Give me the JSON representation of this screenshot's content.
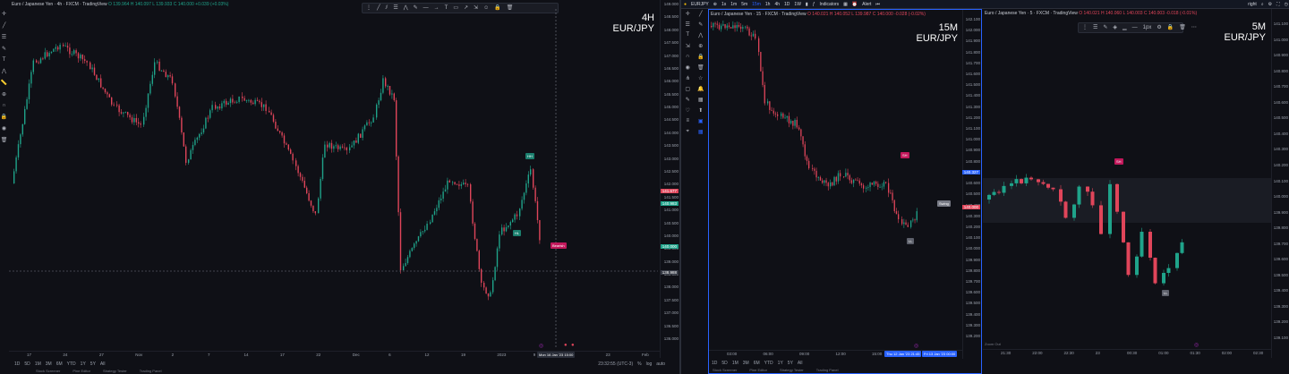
{
  "colors": {
    "background": "#0f1016",
    "up": "#1fa38a",
    "down": "#e0455a",
    "accent": "#2962ff",
    "signal_pink": "#c2185b",
    "signal_teal": "#1b7f6e"
  },
  "left_chart": {
    "title": "Euro / Japanese Yen · 4h · FXCM · TradingView",
    "ohlc": {
      "o": "O 139.964",
      "h": "H 140.097",
      "l": "L 139.933",
      "c": "C 140.000",
      "chg": "+0.039 (+0.03%)"
    },
    "big_label_tf": "4H",
    "big_label_pair": "EUR/JPY",
    "price_ticks": [
      "149.000",
      "148.500",
      "148.000",
      "147.500",
      "147.000",
      "146.500",
      "146.000",
      "145.500",
      "145.000",
      "144.500",
      "144.000",
      "143.500",
      "143.000",
      "142.500",
      "142.000",
      "141.500",
      "141.000",
      "140.500",
      "140.000",
      "139.500",
      "139.000",
      "138.500",
      "138.000",
      "137.500",
      "137.000",
      "136.500",
      "136.000"
    ],
    "badges": {
      "p1": "141.677",
      "p2": "140.983",
      "p3": "140.000",
      "p4": "138.988"
    },
    "time_ticks": [
      "17",
      "24",
      "27",
      "Nov",
      "2",
      "7",
      "14",
      "17",
      "22",
      "Dec",
      "6",
      "12",
      "19",
      "2023",
      "9",
      "16",
      "23",
      "Feb"
    ],
    "crosshair_time": "Mon 16 Jan '23  15:00",
    "signals": {
      "bullish": "Bullish",
      "bearish": "Bearish",
      "hh": "HH",
      "hl": "HL"
    },
    "ranges": [
      "1D",
      "5D",
      "1M",
      "3M",
      "6M",
      "YTD",
      "1Y",
      "5Y",
      "All"
    ],
    "clock": "23:32:55 (UTC-3)",
    "controls": [
      "%",
      "log",
      "auto"
    ],
    "footer": [
      "Stock Screener",
      "Pine Editor",
      "Strategy Tester",
      "Trading Panel"
    ]
  },
  "topbar": {
    "symbol": "EURJPY",
    "timeframes": [
      "1s",
      "1m",
      "5m",
      "15m",
      "1h",
      "4h",
      "1D",
      "1W"
    ],
    "active_timeframe": "15m",
    "indicators": "Indicators",
    "alert": "Alert",
    "layout": "right"
  },
  "mid_chart": {
    "title": "Euro / Japanese Yen · 15 · FXCM · TradingView",
    "ohlc": {
      "o": "O 140.021",
      "h": "H 140.052",
      "l": "L 139.987",
      "c": "C 140.000",
      "chg": "-0.028 (-0.02%)"
    },
    "big_label_tf": "15M",
    "big_label_pair": "EUR/JPY",
    "price_ticks": [
      "142.100",
      "142.000",
      "141.900",
      "141.800",
      "141.700",
      "141.600",
      "141.500",
      "141.400",
      "141.300",
      "141.200",
      "141.100",
      "141.000",
      "140.900",
      "140.800",
      "140.700",
      "140.600",
      "140.500",
      "140.400",
      "140.300",
      "140.200",
      "140.100",
      "140.000",
      "139.900",
      "139.800",
      "139.700",
      "139.600",
      "139.500",
      "139.400",
      "139.300",
      "139.200"
    ],
    "badges": {
      "p1": "140.327",
      "p2": "140.000"
    },
    "time_ticks": [
      "03:00",
      "06:00",
      "09:00",
      "12:00",
      "15:00",
      "18:00",
      "21:00"
    ],
    "crosshair_time": "Thu 12 Jan '23  21:45",
    "crosshair_time2": "Fri 13 Jan '23  00:00",
    "signals": {
      "short": "SH",
      "ll": "LL",
      "tag": "Swing"
    },
    "ranges": [
      "1D",
      "5D",
      "1M",
      "3M",
      "6M",
      "YTD",
      "1Y",
      "5Y",
      "All"
    ],
    "footer": [
      "Stock Screener",
      "Pine Editor",
      "Strategy Tester",
      "Trading Panel"
    ]
  },
  "right_chart": {
    "title": "Euro / Japanese Yen · 5 · FXCM · TradingView",
    "ohlc": {
      "o": "O 140.021",
      "h": "H 140.060",
      "l": "L 140.003",
      "c": "C 140.003",
      "chg": "-0.018 (-0.01%)"
    },
    "big_label_tf": "5M",
    "big_label_pair": "EUR/JPY",
    "price_ticks": [
      "141.100",
      "141.000",
      "140.900",
      "140.800",
      "140.700",
      "140.600",
      "140.500",
      "140.400",
      "140.300",
      "140.200",
      "140.100",
      "140.000",
      "139.900",
      "139.800",
      "139.700",
      "139.600",
      "139.500",
      "139.400",
      "139.300",
      "139.200",
      "139.100"
    ],
    "time_ticks": [
      "21:30",
      "22:00",
      "22:30",
      "23",
      "00:30",
      "01:00",
      "01:30",
      "02:00",
      "02:30"
    ],
    "draw_tools": "1px",
    "signals": {
      "ll": "LL",
      "sh": "SH"
    },
    "footer_text": "Zoom Out"
  }
}
